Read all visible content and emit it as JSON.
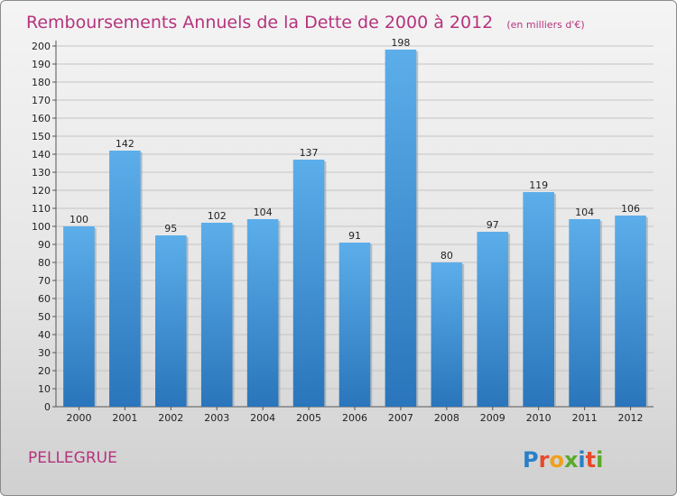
{
  "chart_data": {
    "type": "bar",
    "title": "Remboursements Annuels de la Dette de 2000 à 2012",
    "subtitle": "(en milliers d'€)",
    "categories": [
      "2000",
      "2001",
      "2002",
      "2003",
      "2004",
      "2005",
      "2006",
      "2007",
      "2008",
      "2009",
      "2010",
      "2011",
      "2012"
    ],
    "values": [
      100,
      142,
      95,
      102,
      104,
      137,
      91,
      198,
      80,
      97,
      119,
      104,
      106
    ],
    "ylim": [
      0,
      200
    ],
    "yticks": [
      0,
      10,
      20,
      30,
      40,
      50,
      60,
      70,
      80,
      90,
      100,
      110,
      120,
      130,
      140,
      150,
      160,
      170,
      180,
      190,
      200
    ],
    "xlabel": "",
    "ylabel": "",
    "grid": true,
    "bar_color": "#3f8fd5"
  },
  "footer": {
    "town": "PELLEGRUE"
  },
  "logo": {
    "text": "Proxiti",
    "letter_colors": [
      "#2a7fc8",
      "#e8492a",
      "#f0a01a",
      "#5aaa2a",
      "#2a7fc8",
      "#e8492a",
      "#5aaa2a"
    ]
  }
}
